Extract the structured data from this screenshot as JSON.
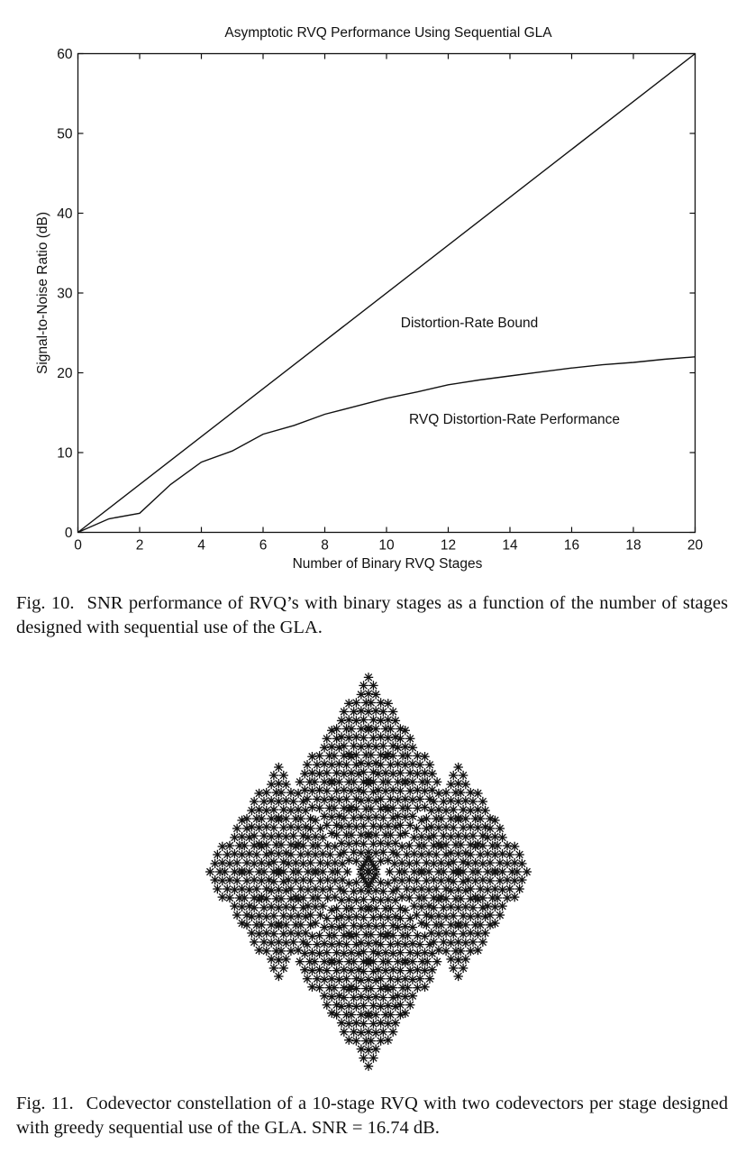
{
  "chart_data": [
    {
      "type": "line",
      "title": "Asymptotic RVQ Performance Using Sequential GLA",
      "xlabel": "Number of Binary RVQ Stages",
      "ylabel": "Signal-to-Noise Ratio (dB)",
      "xlim": [
        0,
        20
      ],
      "ylim": [
        0,
        60
      ],
      "xticks": [
        0,
        2,
        4,
        6,
        8,
        10,
        12,
        14,
        16,
        18,
        20
      ],
      "yticks": [
        0,
        10,
        20,
        30,
        40,
        50,
        60
      ],
      "grid": false,
      "series": [
        {
          "name": "Distortion-Rate Bound",
          "x": [
            0,
            20
          ],
          "y": [
            0,
            60
          ]
        },
        {
          "name": "RVQ Distortion-Rate Performance",
          "x": [
            0,
            1,
            2,
            3,
            4,
            5,
            6,
            7,
            8,
            9,
            10,
            11,
            12,
            13,
            14,
            15,
            16,
            17,
            18,
            19,
            20
          ],
          "y": [
            0,
            1.7,
            2.4,
            6.0,
            8.8,
            10.2,
            12.3,
            13.4,
            14.8,
            15.8,
            16.8,
            17.6,
            18.5,
            19.1,
            19.6,
            20.1,
            20.6,
            21.0,
            21.3,
            21.7,
            22.0
          ]
        }
      ]
    },
    {
      "type": "scatter",
      "marker": "*",
      "color": "#111111",
      "axes": false,
      "stages": 10,
      "codevectors_per_stage": 2,
      "shape": "diamond"
    }
  ],
  "captions": {
    "fig10_number": "Fig. 10.",
    "fig10_text": "SNR performance of RVQ’s with binary stages as a function of the number of stages designed with sequential use of the GLA.",
    "fig11_number": "Fig. 11.",
    "fig11_text": "Codevector constellation of a 10-stage RVQ with two codevectors per stage designed with greedy sequential use of the GLA. SNR = 16.74 dB."
  }
}
